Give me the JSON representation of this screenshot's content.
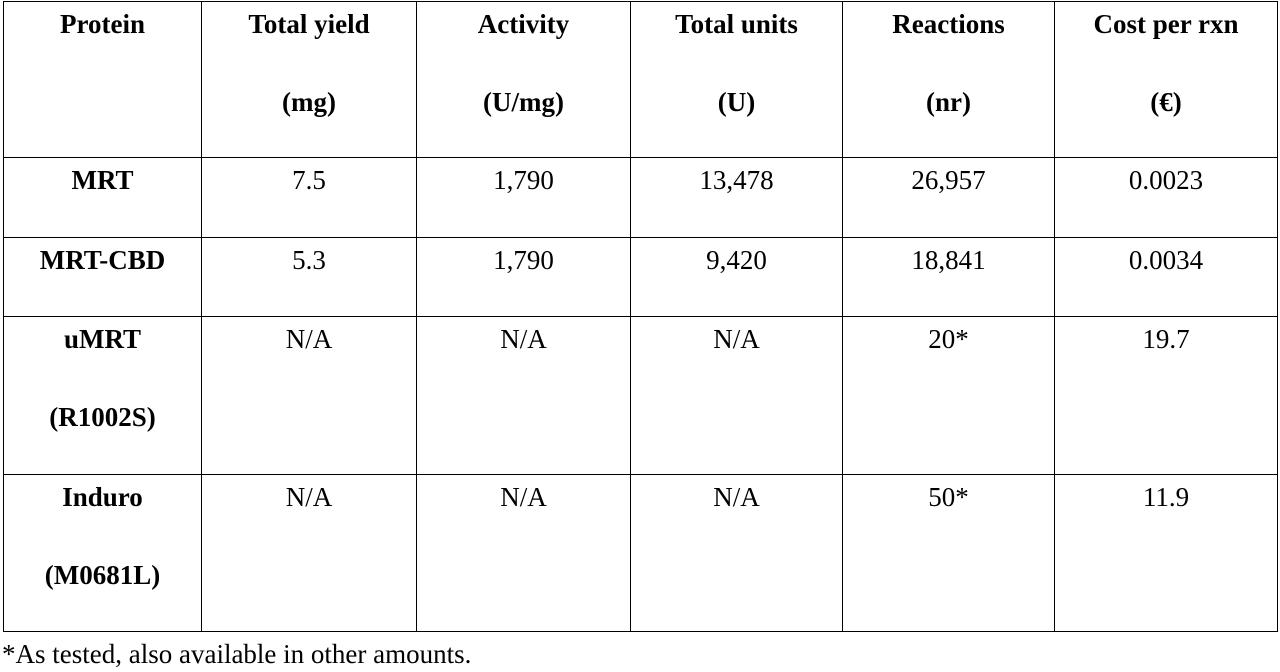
{
  "table": {
    "header": [
      [
        "Protein"
      ],
      [
        "Total yield",
        "(mg)"
      ],
      [
        "Activity",
        "(U/mg)"
      ],
      [
        "Total units",
        "(U)"
      ],
      [
        "Reactions",
        "(nr)"
      ],
      [
        "Cost per rxn",
        "(€)"
      ]
    ],
    "rows": [
      [
        [
          "MRT"
        ],
        [
          "7.5"
        ],
        [
          "1,790"
        ],
        [
          "13,478"
        ],
        [
          "26,957"
        ],
        [
          "0.0023"
        ]
      ],
      [
        [
          "MRT-CBD"
        ],
        [
          "5.3"
        ],
        [
          "1,790"
        ],
        [
          "9,420"
        ],
        [
          "18,841"
        ],
        [
          "0.0034"
        ]
      ],
      [
        [
          "uMRT",
          "(R1002S)"
        ],
        [
          "N/A"
        ],
        [
          "N/A"
        ],
        [
          "N/A"
        ],
        [
          "20*"
        ],
        [
          "19.7"
        ]
      ],
      [
        [
          "Induro",
          "(M0681L)"
        ],
        [
          "N/A"
        ],
        [
          "N/A"
        ],
        [
          "N/A"
        ],
        [
          "50*"
        ],
        [
          "11.9"
        ]
      ]
    ]
  },
  "footnote": "*As tested, also available in other amounts."
}
